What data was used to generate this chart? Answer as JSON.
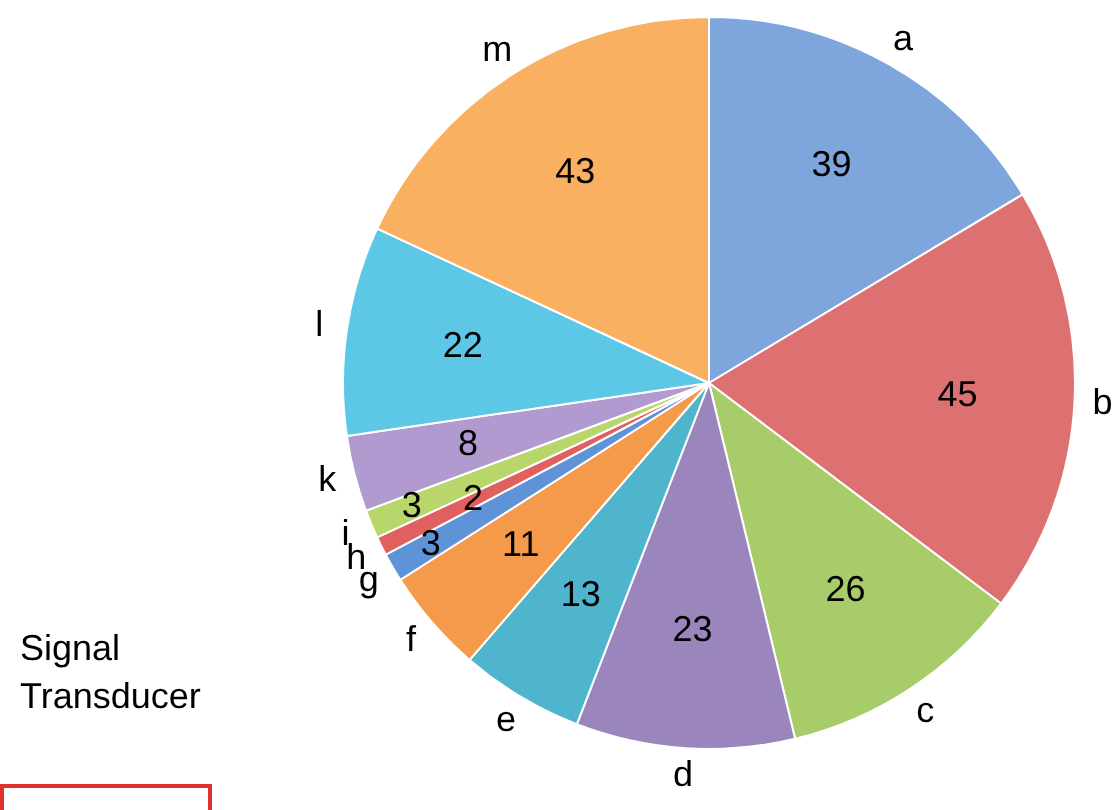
{
  "chart_data": {
    "type": "pie",
    "categories": [
      "a",
      "b",
      "c",
      "d",
      "e",
      "f",
      "g",
      "h",
      "i",
      "k",
      "l",
      "m"
    ],
    "values": [
      39,
      45,
      26,
      23,
      13,
      11,
      3,
      2,
      3,
      8,
      22,
      43
    ],
    "colors": [
      "#7fa6dc",
      "#dd7070",
      "#a8cc6a",
      "#9a86bc",
      "#4fb5cc",
      "#f49a4a",
      "#5f93d8",
      "#e06060",
      "#b8d66a",
      "#b09ad0",
      "#5cc8e6",
      "#f9b060"
    ],
    "data_labels": true,
    "legend": false,
    "annotations": [
      "Signal Transducer"
    ]
  }
}
